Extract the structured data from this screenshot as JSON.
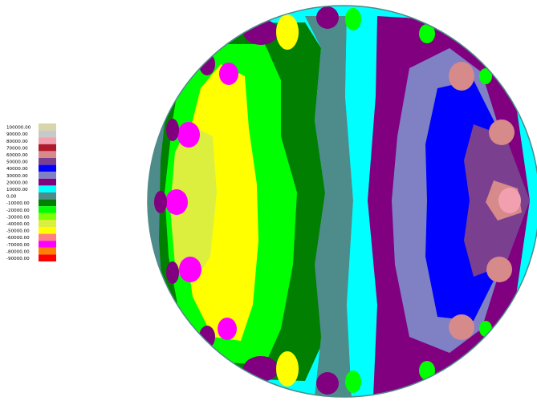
{
  "chart_data": {
    "type": "heatmap",
    "title": "",
    "xlabel": "",
    "ylabel": "",
    "legend_position": "left",
    "grid": false,
    "legend": [
      {
        "label": "100000.00",
        "value": 100000,
        "color": "#d8d5a8"
      },
      {
        "label": "90000.00",
        "value": 90000,
        "color": "#c9c9c9"
      },
      {
        "label": "80000.00",
        "value": 80000,
        "color": "#f2a0b0"
      },
      {
        "label": "70000.00",
        "value": 70000,
        "color": "#b0182b"
      },
      {
        "label": "60000.00",
        "value": 60000,
        "color": "#d68a8a"
      },
      {
        "label": "50000.00",
        "value": 50000,
        "color": "#7a3f8f"
      },
      {
        "label": "40000.00",
        "value": 40000,
        "color": "#0000ff"
      },
      {
        "label": "30000.00",
        "value": 30000,
        "color": "#8080c4"
      },
      {
        "label": "20000.00",
        "value": 20000,
        "color": "#800080"
      },
      {
        "label": "10000.00",
        "value": 10000,
        "color": "#00ffff"
      },
      {
        "label": "0,00",
        "value": 0,
        "color": "#4e8b8b"
      },
      {
        "label": "-10000.00",
        "value": -10000,
        "color": "#007f00"
      },
      {
        "label": "-20000.00",
        "value": -20000,
        "color": "#00ff00"
      },
      {
        "label": "-30000.00",
        "value": -30000,
        "color": "#80ff00"
      },
      {
        "label": "-40000.00",
        "value": -40000,
        "color": "#dcef3f"
      },
      {
        "label": "-50000.00",
        "value": -50000,
        "color": "#ffff00"
      },
      {
        "label": "-60000.00",
        "value": -60000,
        "color": "#ff8080"
      },
      {
        "label": "-70000.00",
        "value": -70000,
        "color": "#ff00ff"
      },
      {
        "label": "-80000.00",
        "value": -80000,
        "color": "#ff8000"
      },
      {
        "label": "-90000.00",
        "value": -90000,
        "color": "#ff0000"
      }
    ]
  }
}
